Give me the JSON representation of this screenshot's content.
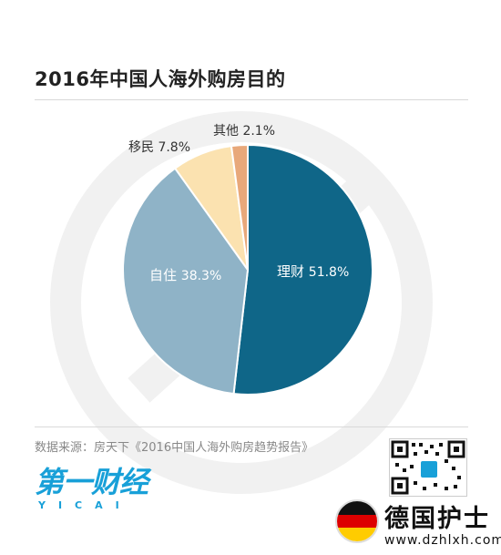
{
  "title": "2016年中国人海外购房目的",
  "chart_data": {
    "type": "pie",
    "title": "2016年中国人海外购房目的",
    "slices": [
      {
        "name": "理财",
        "value": 51.8,
        "label": "51.8%",
        "color": "#0f6688"
      },
      {
        "name": "自住",
        "value": 38.3,
        "label": "38.3%",
        "color": "#8fb3c7"
      },
      {
        "name": "移民",
        "value": 7.8,
        "label": "7.8%",
        "color": "#fbe2b0"
      },
      {
        "name": "其他",
        "value": 2.1,
        "label": "2.1%",
        "color": "#e8a87a"
      }
    ]
  },
  "source": "数据来源：房天下《2016中国人海外购房趋势报告》",
  "logo": {
    "main": "第一财经",
    "sub": "YICAI"
  },
  "watermark": {
    "text": "德国护士",
    "url": "www.dzhlxh.com"
  }
}
